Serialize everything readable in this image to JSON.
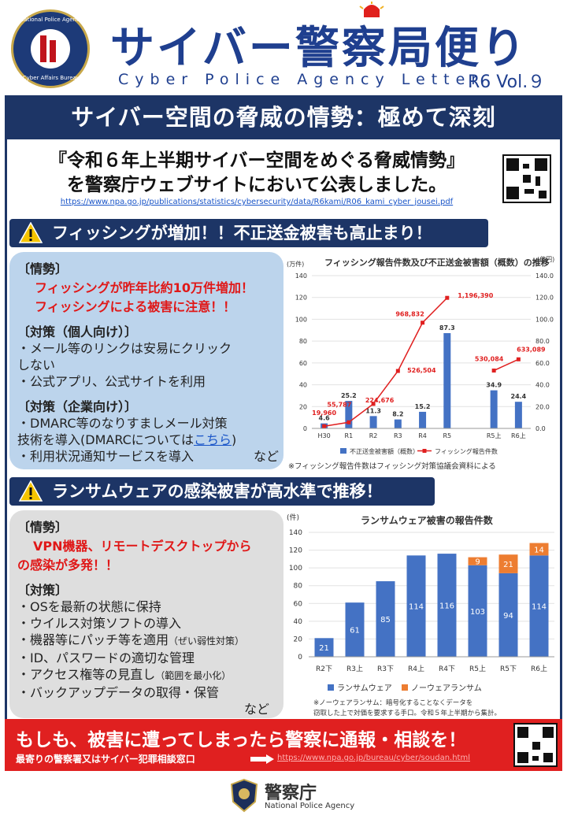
{
  "header": {
    "emblem_ring_top": "National Police Agency",
    "emblem_ring_bottom": "Cyber Affairs Bureau",
    "title": "サイバー警察局便り",
    "subtitle": "Cyber Police Agency Letter",
    "volume": "R6 Vol.９"
  },
  "banner": "サイバー空間の脅威の情勢：極めて深刻",
  "announcement": {
    "line1": "『令和６年上半期サイバー空間をめぐる脅威情勢』",
    "line2": "を警察庁ウェブサイトにおいて公表しました。",
    "url": "https://www.npa.go.jp/publications/statistics/cybersecurity/data/R6kami/R06_kami_cyber_jousei.pdf"
  },
  "section1": {
    "heading": "フィッシングが増加！！不正送金被害も高止まり！",
    "situation_label": "〔情勢〕",
    "situation_line1": "フィッシングが昨年比約10万件増加！",
    "situation_line2": "フィッシングによる被害に注意！！",
    "personal_label": "〔対策（個人向け）〕",
    "personal_1": "・メール等のリンクは安易にクリック",
    "personal_1b": "しない",
    "personal_2": "・公式アプリ、公式サイトを利用",
    "corp_label": "〔対策（企業向け）〕",
    "corp_1": "・DMARC等のなりすましメール対策",
    "corp_1b_pre": "技術を導入(DMARCについては",
    "corp_1b_link": "こちら",
    "corp_1b_post": ")",
    "corp_2": "・利用状況通知サービスを導入",
    "etc": "など",
    "chart_note": "※フィッシング報告件数はフィッシング対策協議会資料による"
  },
  "section2": {
    "heading": "ランサムウェアの感染被害が高水準で推移！",
    "situation_label": "〔情勢〕",
    "situation_line1": "VPN機器、リモートデスクトップから",
    "situation_line2": "の感染が多発！！",
    "measures_label": "〔対策〕",
    "m1": "・OSを最新の状態に保持",
    "m2": "・ウイルス対策ソフトの導入",
    "m3a": "・機器等にパッチ等を適用",
    "m3b": "（ぜい弱性対策）",
    "m4": "・ID、パスワードの適切な管理",
    "m5a": "・アクセス権等の見直し",
    "m5b": "（範囲を最小化）",
    "m6": "・バックアップデータの取得・保管",
    "etc": "など",
    "chart_note1": "※ノーウェアランサム：暗号化することなくデータを",
    "chart_note2": "窃取した上で対価を要求する手口。令和５年上半期から集計。"
  },
  "alert": {
    "text": "もしも、被害に遭ってしまったら警察に通報・相談を！",
    "sub": "最寄りの警察署又はサイバー犯罪相談窓口",
    "link": "https://www.npa.go.jp/bureau/cyber/soudan.html"
  },
  "footer": {
    "name": "警察庁",
    "name_en": "National Police Agency"
  },
  "colors": {
    "navy": "#1d3566",
    "title_blue": "#1f3f8f",
    "bar_blue": "#4472c4",
    "line_red": "#e02020",
    "noware_orange": "#ed7d31",
    "panel_blue": "#bcd4ec",
    "panel_gray": "#dedede"
  },
  "chart_data": [
    {
      "type": "bar+line",
      "title": "フィッシング報告件数及び不正送金被害額（概数）の推移",
      "categories": [
        "H30",
        "R1",
        "R2",
        "R3",
        "R4",
        "R5",
        "R5上",
        "R6上"
      ],
      "left_axis_unit": "(万件)",
      "right_axis_unit": "(億円)",
      "left_ticks": [
        "0",
        "20",
        "40",
        "60",
        "80",
        "100",
        "120",
        "140"
      ],
      "right_ticks": [
        "0.0",
        "20.0",
        "40.0",
        "60.0",
        "80.0",
        "100.0",
        "120.0",
        "140.0"
      ],
      "ylim": [
        0,
        140
      ],
      "series": [
        {
          "name": "不正送金被害額（概数）",
          "kind": "bar",
          "axis": "right",
          "values": [
            4.6,
            25.2,
            11.3,
            8.2,
            15.2,
            87.3,
            34.9,
            24.4
          ],
          "labels": [
            "4.6",
            "25.2",
            "11.3",
            "8.2",
            "15.2",
            "87.3",
            "34.9",
            "24.4"
          ]
        },
        {
          "name": "フィッシング報告件数",
          "kind": "line",
          "axis": "left",
          "segments": [
            [
              0,
              1,
              2,
              3,
              4,
              5
            ],
            [
              6,
              7
            ]
          ],
          "values": [
            1.996,
            5.5787,
            22.4676,
            52.6504,
            96.8832,
            119.639,
            53.0084,
            63.3089
          ],
          "labels": [
            "19,960",
            "55,787",
            "224,676",
            "526,504",
            "968,832",
            "1,196,390",
            "530,084",
            "633,089"
          ]
        }
      ],
      "legend_position": "bottom"
    },
    {
      "type": "stacked-bar",
      "title": "ランサムウェア被害の報告件数",
      "y_unit": "(件)",
      "categories": [
        "R2下",
        "R3上",
        "R3下",
        "R4上",
        "R4下",
        "R5上",
        "R5下",
        "R6上"
      ],
      "ticks": [
        "0",
        "20",
        "40",
        "60",
        "80",
        "100",
        "120",
        "140"
      ],
      "ylim": [
        0,
        140
      ],
      "series": [
        {
          "name": "ランサムウェア",
          "values": [
            21,
            61,
            85,
            114,
            116,
            103,
            94,
            114
          ]
        },
        {
          "name": "ノーウェアランサム",
          "values": [
            0,
            0,
            0,
            0,
            0,
            9,
            21,
            14
          ]
        }
      ],
      "legend_position": "bottom"
    }
  ]
}
